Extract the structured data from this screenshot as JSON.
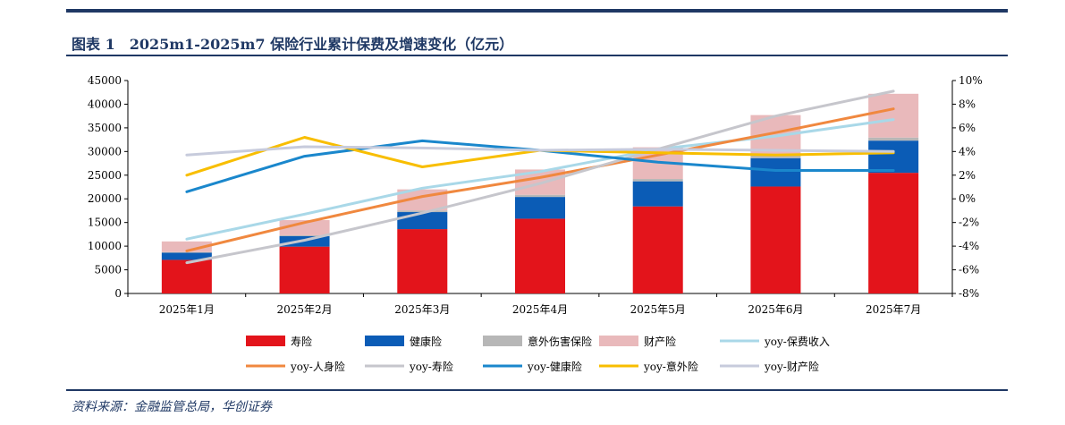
{
  "header": {
    "title": "图表 1　2025m1-2025m7 保险行业累计保费及增速变化（亿元）"
  },
  "footer": {
    "source": "资料来源：金融监管总局，华创证券"
  },
  "chart_data": {
    "type": "bar",
    "stacked": true,
    "categories": [
      "2025年1月",
      "2025年2月",
      "2025年3月",
      "2025年4月",
      "2025年5月",
      "2025年6月",
      "2025年7月"
    ],
    "ylim": [
      0,
      45000
    ],
    "yticks": [
      0,
      5000,
      10000,
      15000,
      20000,
      25000,
      30000,
      35000,
      40000,
      45000
    ],
    "y2lim": [
      -8,
      10
    ],
    "y2ticks": [
      "-8%",
      "-6%",
      "-4%",
      "-2%",
      "0%",
      "2%",
      "4%",
      "6%",
      "8%",
      "10%"
    ],
    "grid": false,
    "legend_position": "bottom",
    "bar_series": [
      {
        "name": "寿险",
        "color": "#e3141b",
        "values": [
          7100,
          9900,
          13600,
          15800,
          18400,
          22600,
          25500
        ]
      },
      {
        "name": "健康险",
        "color": "#0b5cb6",
        "values": [
          1500,
          2200,
          3600,
          4600,
          5300,
          6000,
          6800
        ]
      },
      {
        "name": "意外伤害保险",
        "color": "#b7b7b7",
        "values": [
          150,
          200,
          350,
          450,
          500,
          550,
          650
        ]
      },
      {
        "name": "财产险",
        "color": "#e9b9bb",
        "values": [
          2250,
          3200,
          4450,
          5350,
          6700,
          8550,
          9250
        ]
      }
    ],
    "line_series": [
      {
        "name": "yoy-保费收入",
        "color": "#a9d8e8",
        "values": [
          -3.4,
          -1.3,
          0.9,
          2.3,
          4.2,
          5.3,
          6.7
        ]
      },
      {
        "name": "yoy-人身险",
        "color": "#f0883f",
        "values": [
          -4.4,
          -2.0,
          0.2,
          1.8,
          3.7,
          5.6,
          7.6
        ]
      },
      {
        "name": "yoy-寿险",
        "color": "#c6c6cc",
        "values": [
          -5.4,
          -3.5,
          -1.2,
          1.3,
          4.2,
          7.0,
          9.1
        ]
      },
      {
        "name": "yoy-健康险",
        "color": "#1a87cc",
        "values": [
          0.6,
          3.6,
          4.9,
          4.1,
          3.1,
          2.4,
          2.4
        ]
      },
      {
        "name": "yoy-意外险",
        "color": "#f8be00",
        "values": [
          2.0,
          5.2,
          2.7,
          4.1,
          3.9,
          3.7,
          3.9
        ]
      },
      {
        "name": "yoy-财产险",
        "color": "#c7cbdc",
        "values": [
          3.7,
          4.4,
          4.3,
          4.1,
          4.2,
          4.1,
          4.0
        ]
      }
    ]
  }
}
